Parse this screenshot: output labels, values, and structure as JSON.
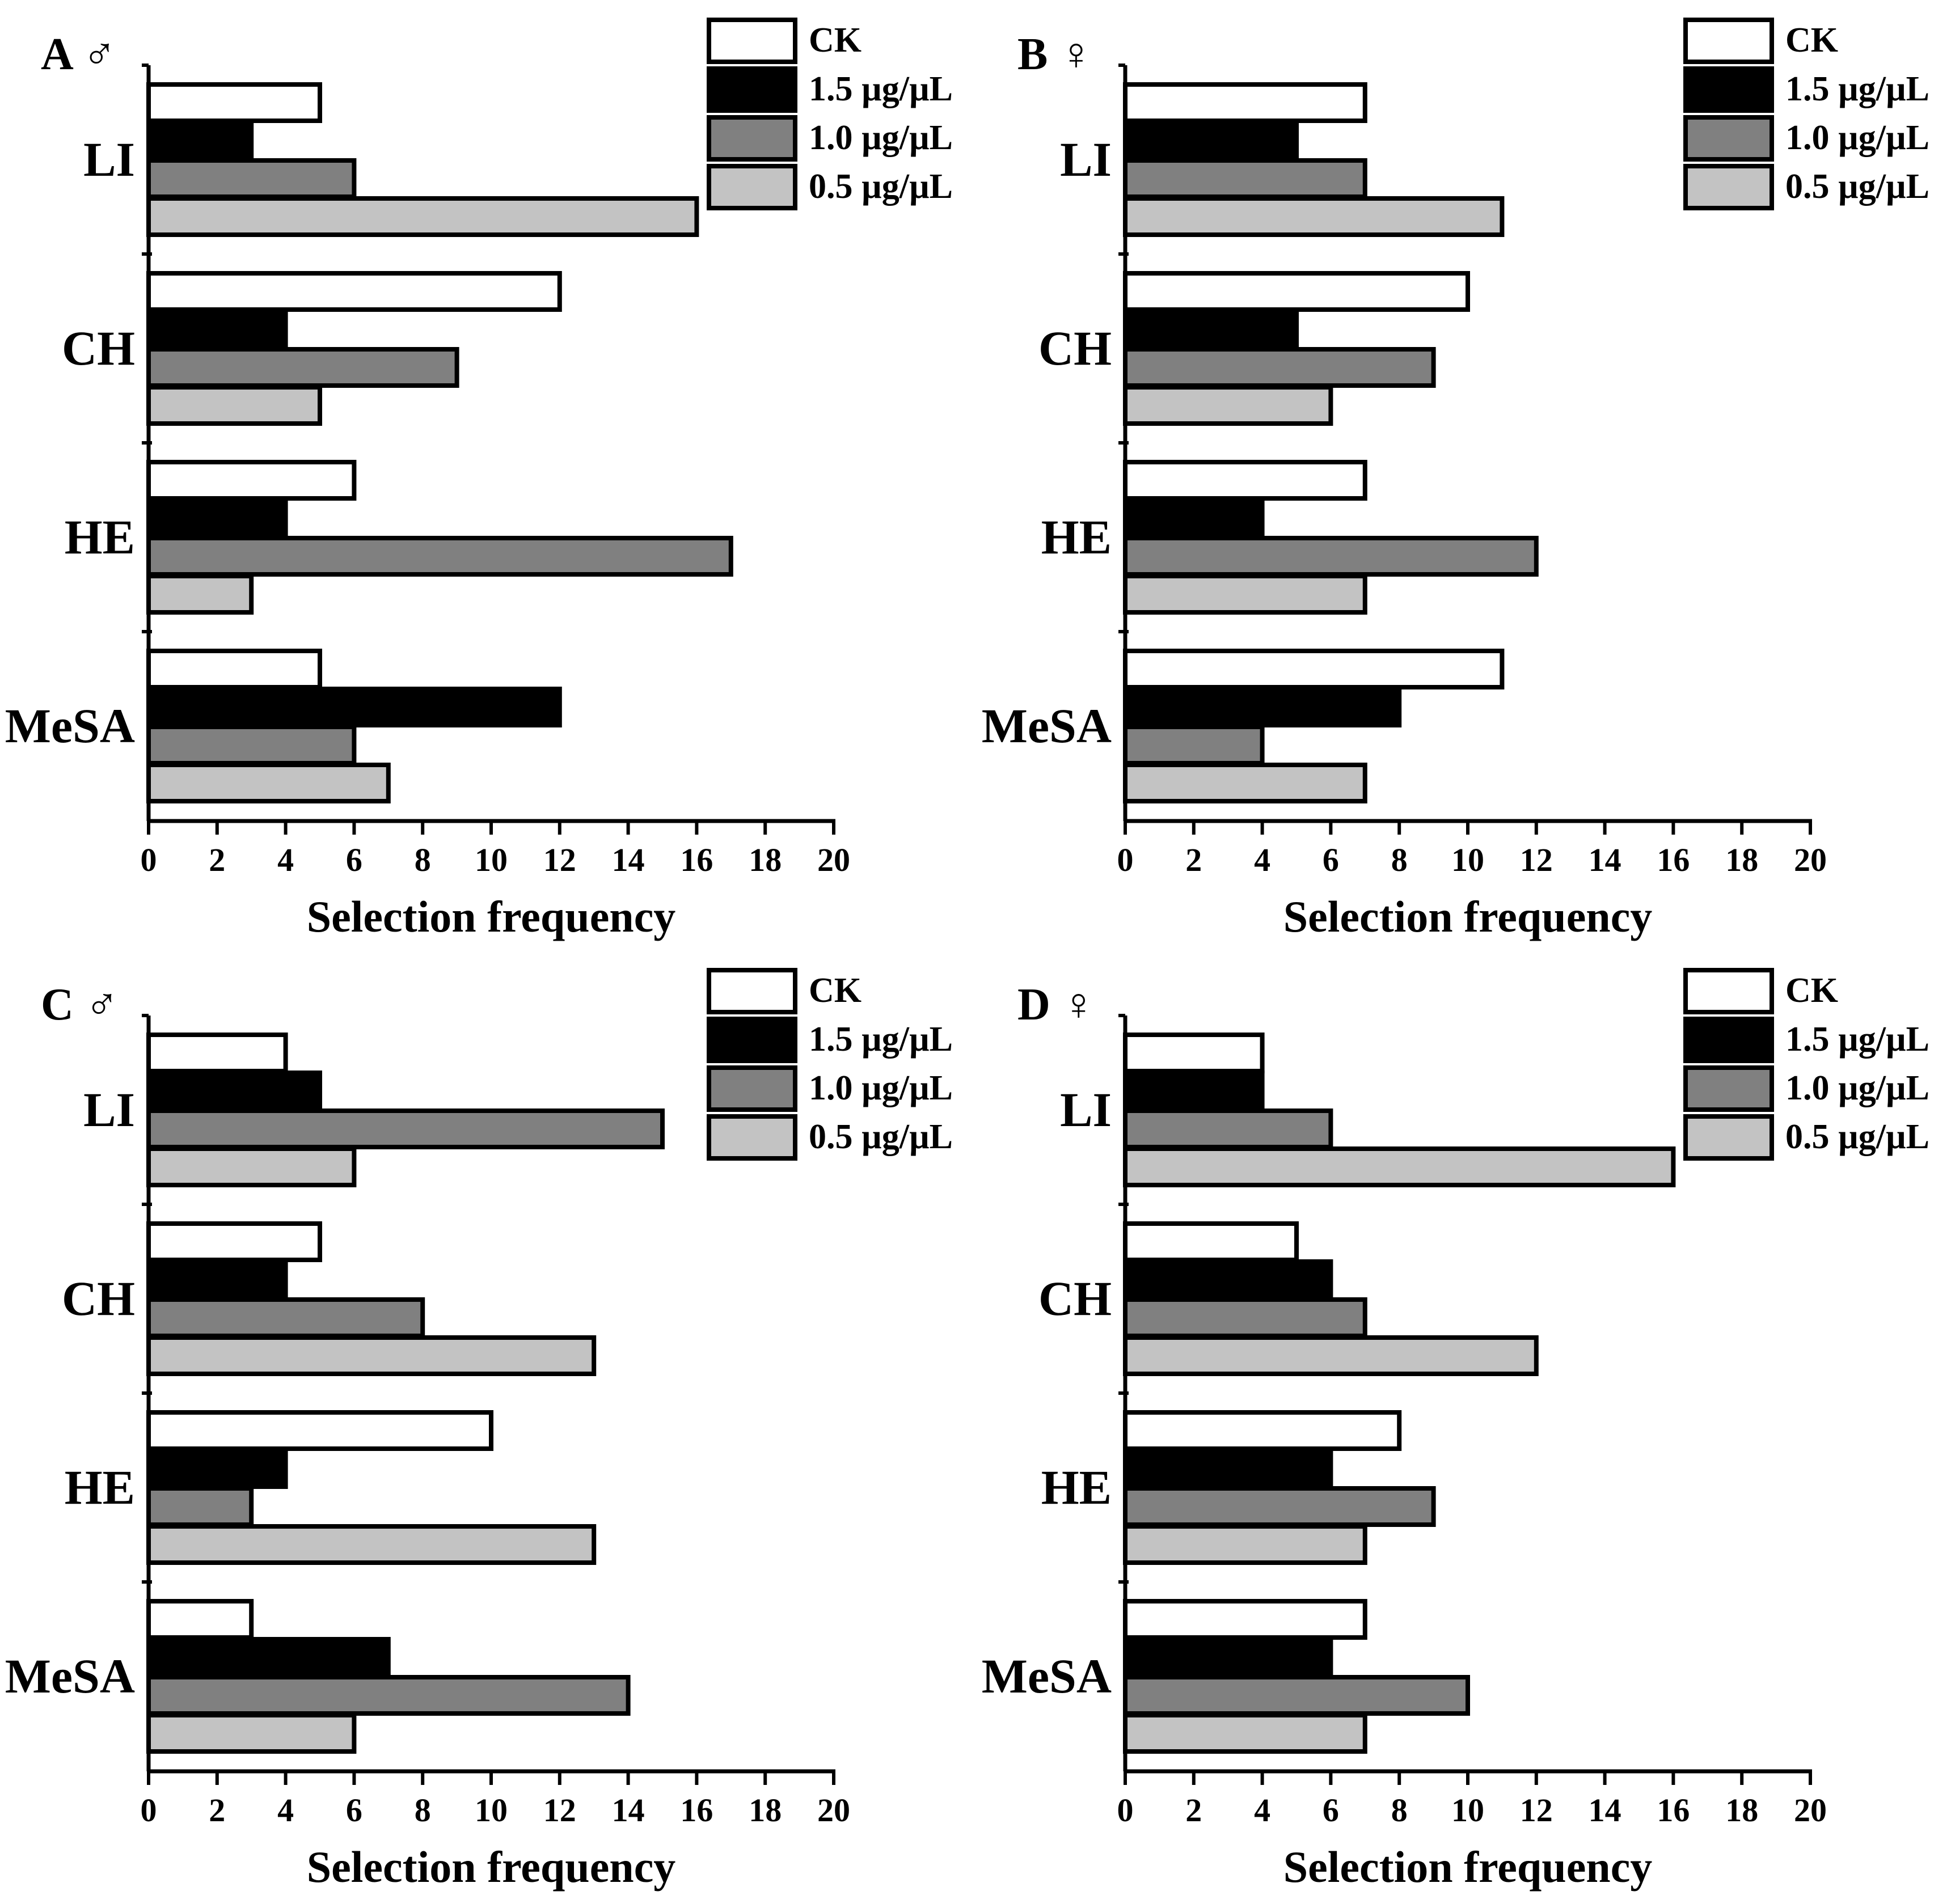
{
  "colors": {
    "CK": "#ffffff",
    "1.5 µg/µL": "#000000",
    "1.0 µg/µL": "#808080",
    "0.5 µg/µL": "#c3c3c3"
  },
  "chart_data": [
    {
      "type": "bar",
      "orientation": "horizontal",
      "panel": "A",
      "sex": "♂",
      "xlabel": "Selection frequency",
      "xlim": [
        0,
        20
      ],
      "xticks": [
        0,
        2,
        4,
        6,
        8,
        10,
        12,
        14,
        16,
        18,
        20
      ],
      "categories": [
        "LI",
        "CH",
        "HE",
        "MeSA"
      ],
      "legend_position": "top-right",
      "series": [
        {
          "name": "CK",
          "values": [
            5,
            12,
            6,
            5
          ]
        },
        {
          "name": "1.5 µg/µL",
          "values": [
            3,
            4,
            4,
            12
          ]
        },
        {
          "name": "1.0 µg/µL",
          "values": [
            6,
            9,
            17,
            6
          ]
        },
        {
          "name": "0.5 µg/µL",
          "values": [
            16,
            5,
            3,
            7
          ]
        }
      ]
    },
    {
      "type": "bar",
      "orientation": "horizontal",
      "panel": "B",
      "sex": "♀",
      "xlabel": "Selection frequency",
      "xlim": [
        0,
        20
      ],
      "xticks": [
        0,
        2,
        4,
        6,
        8,
        10,
        12,
        14,
        16,
        18,
        20
      ],
      "categories": [
        "LI",
        "CH",
        "HE",
        "MeSA"
      ],
      "legend_position": "top-right",
      "series": [
        {
          "name": "CK",
          "values": [
            7,
            10,
            7,
            11
          ]
        },
        {
          "name": "1.5 µg/µL",
          "values": [
            5,
            5,
            4,
            8
          ]
        },
        {
          "name": "1.0 µg/µL",
          "values": [
            7,
            9,
            12,
            4
          ]
        },
        {
          "name": "0.5 µg/µL",
          "values": [
            11,
            6,
            7,
            7
          ]
        }
      ]
    },
    {
      "type": "bar",
      "orientation": "horizontal",
      "panel": "C",
      "sex": "♂",
      "xlabel": "Selection frequency",
      "xlim": [
        0,
        20
      ],
      "xticks": [
        0,
        2,
        4,
        6,
        8,
        10,
        12,
        14,
        16,
        18,
        20
      ],
      "categories": [
        "LI",
        "CH",
        "HE",
        "MeSA"
      ],
      "legend_position": "top-right",
      "series": [
        {
          "name": "CK",
          "values": [
            4,
            5,
            10,
            3
          ]
        },
        {
          "name": "1.5 µg/µL",
          "values": [
            5,
            4,
            4,
            7
          ]
        },
        {
          "name": "1.0 µg/µL",
          "values": [
            15,
            8,
            3,
            14
          ]
        },
        {
          "name": "0.5 µg/µL",
          "values": [
            6,
            13,
            13,
            6
          ]
        }
      ]
    },
    {
      "type": "bar",
      "orientation": "horizontal",
      "panel": "D",
      "sex": "♀",
      "xlabel": "Selection frequency",
      "xlim": [
        0,
        20
      ],
      "xticks": [
        0,
        2,
        4,
        6,
        8,
        10,
        12,
        14,
        16,
        18,
        20
      ],
      "categories": [
        "LI",
        "CH",
        "HE",
        "MeSA"
      ],
      "legend_position": "top-right",
      "series": [
        {
          "name": "CK",
          "values": [
            4,
            5,
            8,
            7
          ]
        },
        {
          "name": "1.5 µg/µL",
          "values": [
            4,
            6,
            6,
            6
          ]
        },
        {
          "name": "1.0 µg/µL",
          "values": [
            6,
            7,
            9,
            10
          ]
        },
        {
          "name": "0.5 µg/µL",
          "values": [
            16,
            12,
            7,
            7
          ]
        }
      ]
    }
  ]
}
